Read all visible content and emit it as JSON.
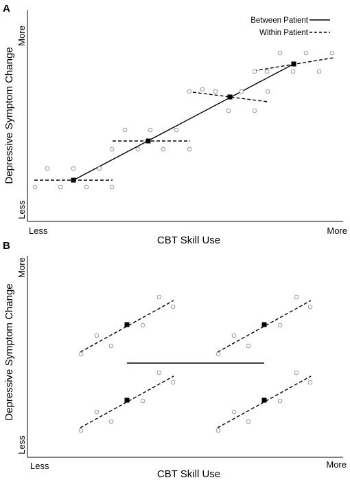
{
  "panels": [
    {
      "id": "A",
      "label": "A",
      "xlabel": "CBT Skill Use",
      "ylabel": "Depressive Symptom Change",
      "x_low": "Less",
      "x_high": "More",
      "y_low": "Less",
      "y_high": "More",
      "legend": [
        {
          "label": "Between Patient",
          "style": "solid"
        },
        {
          "label": "Within Patient",
          "style": "dashed"
        }
      ]
    },
    {
      "id": "B",
      "label": "B",
      "xlabel": "CBT Skill Use",
      "ylabel": "Depressive Symptom Change",
      "x_low": "Less",
      "x_high": "More",
      "y_low": "Less",
      "y_high": "More"
    }
  ],
  "colors": {
    "line": "#000000",
    "open_marker": "#9a9a9a",
    "mean_marker": "#000000"
  }
}
